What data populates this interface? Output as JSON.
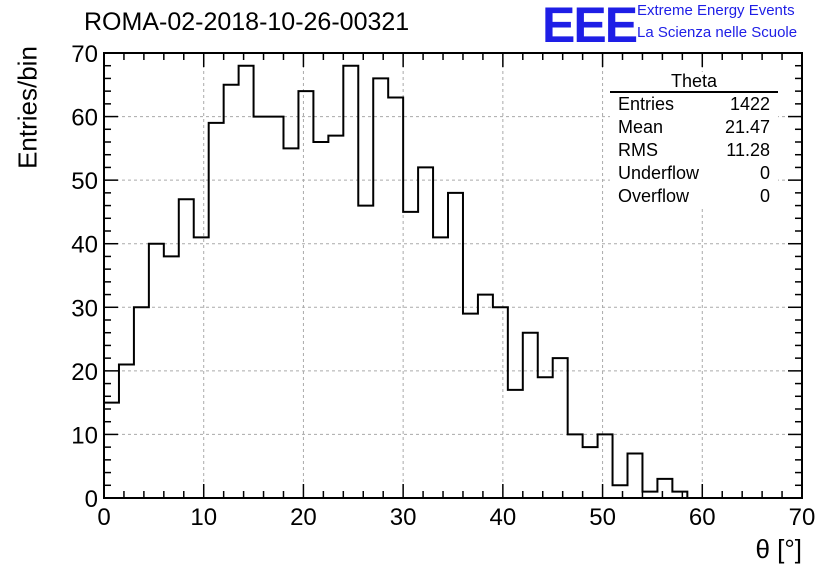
{
  "header": {
    "run_title": "ROMA-02-2018-10-26-00321",
    "logo_mark": "EEE",
    "logo_line1": "Extreme Energy Events",
    "logo_line2": "La Scienza nelle Scuole"
  },
  "stats_box": {
    "title": "Theta",
    "rows": [
      {
        "label": "Entries",
        "value": "1422"
      },
      {
        "label": "Mean",
        "value": "21.47"
      },
      {
        "label": "RMS",
        "value": "11.28"
      },
      {
        "label": "Underflow",
        "value": "0"
      },
      {
        "label": "Overflow",
        "value": "0"
      }
    ]
  },
  "chart_data": {
    "type": "bar",
    "style": "step-histogram",
    "xlabel": "θ [°]",
    "ylabel": "Entries/bin",
    "xlim": [
      0,
      70
    ],
    "ylim": [
      0,
      70
    ],
    "x_ticks": [
      0,
      10,
      20,
      30,
      40,
      50,
      60,
      70
    ],
    "y_ticks": [
      0,
      10,
      20,
      30,
      40,
      50,
      60,
      70
    ],
    "grid": true,
    "bin_width": 1.5,
    "bin_edges_start": 0,
    "values": [
      15,
      21,
      30,
      40,
      38,
      47,
      41,
      59,
      65,
      68,
      60,
      60,
      55,
      64,
      56,
      57,
      68,
      46,
      66,
      63,
      45,
      52,
      41,
      48,
      29,
      32,
      30,
      17,
      26,
      19,
      22,
      10,
      8,
      10,
      2,
      7,
      1,
      3,
      1,
      0
    ],
    "line_color": "#000000",
    "grid_color": "#aaaaaa"
  }
}
